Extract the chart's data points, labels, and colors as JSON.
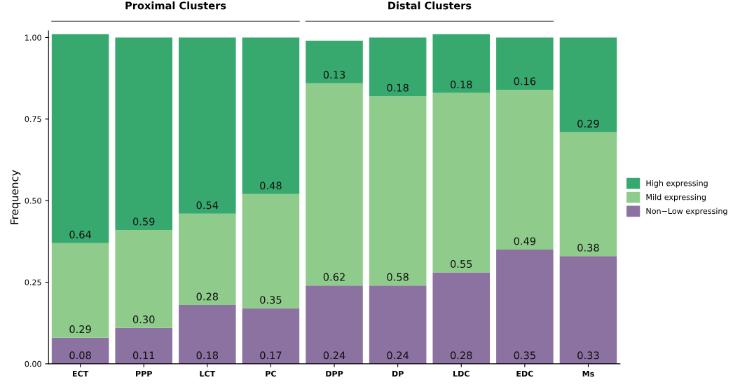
{
  "chart_data": {
    "type": "bar",
    "stacked": true,
    "ylabel": "Frequency",
    "categories": [
      "ECT",
      "PPP",
      "LCT",
      "PC",
      "DPP",
      "DP",
      "LDC",
      "EDC",
      "Ms"
    ],
    "series": [
      {
        "name": "Non−Low expressing",
        "color": "#8c72a0",
        "values": [
          0.08,
          0.11,
          0.18,
          0.17,
          0.24,
          0.24,
          0.28,
          0.35,
          0.33
        ],
        "value_labels": [
          "0.08",
          "0.11",
          "0.18",
          "0.17",
          "0.24",
          "0.24",
          "0.28",
          "0.35",
          "0.33"
        ]
      },
      {
        "name": "Mild expressing",
        "color": "#8fcc8b",
        "values": [
          0.29,
          0.3,
          0.28,
          0.35,
          0.62,
          0.58,
          0.55,
          0.49,
          0.38
        ],
        "value_labels": [
          "0.29",
          "0.30",
          "0.28",
          "0.35",
          "0.62",
          "0.58",
          "0.55",
          "0.49",
          "0.38"
        ]
      },
      {
        "name": "High expressing",
        "color": "#37a96f",
        "values": [
          0.64,
          0.59,
          0.54,
          0.48,
          0.13,
          0.18,
          0.18,
          0.16,
          0.29
        ],
        "value_labels": [
          "0.64",
          "0.59",
          "0.54",
          "0.48",
          "0.13",
          "0.18",
          "0.18",
          "0.16",
          "0.29"
        ]
      }
    ],
    "ylim": [
      0,
      1.02
    ],
    "yticks": [
      {
        "value": 0,
        "label": "0.00"
      },
      {
        "value": 0.25,
        "label": "0.25"
      },
      {
        "value": 0.5,
        "label": "0.50"
      },
      {
        "value": 0.75,
        "label": "0.75"
      },
      {
        "value": 1,
        "label": "1.00"
      }
    ],
    "grid": false,
    "legend": "right",
    "annotations": [
      "Proximal Clusters",
      "Distal Clusters"
    ]
  }
}
